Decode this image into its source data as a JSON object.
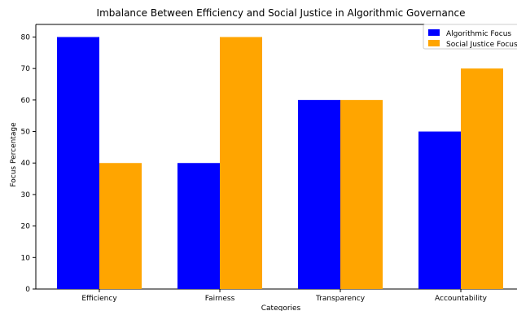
{
  "chart_data": {
    "type": "bar",
    "title": "Imbalance Between Efficiency and Social Justice in Algorithmic Governance",
    "xlabel": "Categories",
    "ylabel": "Focus Percentage",
    "categories": [
      "Efficiency",
      "Fairness",
      "Transparency",
      "Accountability"
    ],
    "series": [
      {
        "name": "Algorithmic Focus",
        "values": [
          80,
          40,
          60,
          50
        ],
        "color": "#0000ff"
      },
      {
        "name": "Social Justice Focus",
        "values": [
          40,
          80,
          60,
          70
        ],
        "color": "#ffa500"
      }
    ],
    "ylim": [
      0,
      84
    ],
    "yticks": [
      "0",
      "10",
      "20",
      "30",
      "40",
      "50",
      "60",
      "70",
      "80"
    ],
    "grid": false,
    "legend_position": "top-right"
  }
}
